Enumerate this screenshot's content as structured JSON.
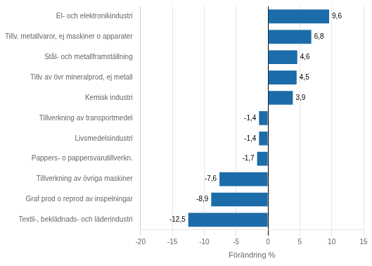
{
  "chart_data": {
    "type": "bar",
    "orientation": "horizontal",
    "categories": [
      "Textil-, beklädnads- och läderindustri",
      "Graf prod o reprod av inspelningar",
      "Tillverkning av övriga maskiner",
      "Pappers- o pappersvarutillverkn.",
      "Livsmedelsindustri",
      "Tillverkning av transportmedel",
      "Kemisk industri",
      "Tillv av övr mineralprod, ej metall",
      "Stål- och metallframställning",
      "Tillv. metallvaror, ej maskiner o apparater",
      "El- och elektronikindustri"
    ],
    "values": [
      -12.5,
      -8.9,
      -7.6,
      -1.7,
      -1.4,
      -1.4,
      3.9,
      4.5,
      4.6,
      6.8,
      9.6
    ],
    "value_labels": [
      "-12,5",
      "-8,9",
      "-7,6",
      "-1,7",
      "-1,4",
      "-1,4",
      "3,9",
      "4,5",
      "4,6",
      "6,8",
      "9,6"
    ],
    "data_labels": true,
    "color": "#1b6ca8",
    "xlabel": "Förändring %",
    "xlim": [
      -20,
      15
    ],
    "xticks": [
      -20,
      -15,
      -10,
      -5,
      0,
      5,
      10,
      15
    ],
    "grid": true
  }
}
